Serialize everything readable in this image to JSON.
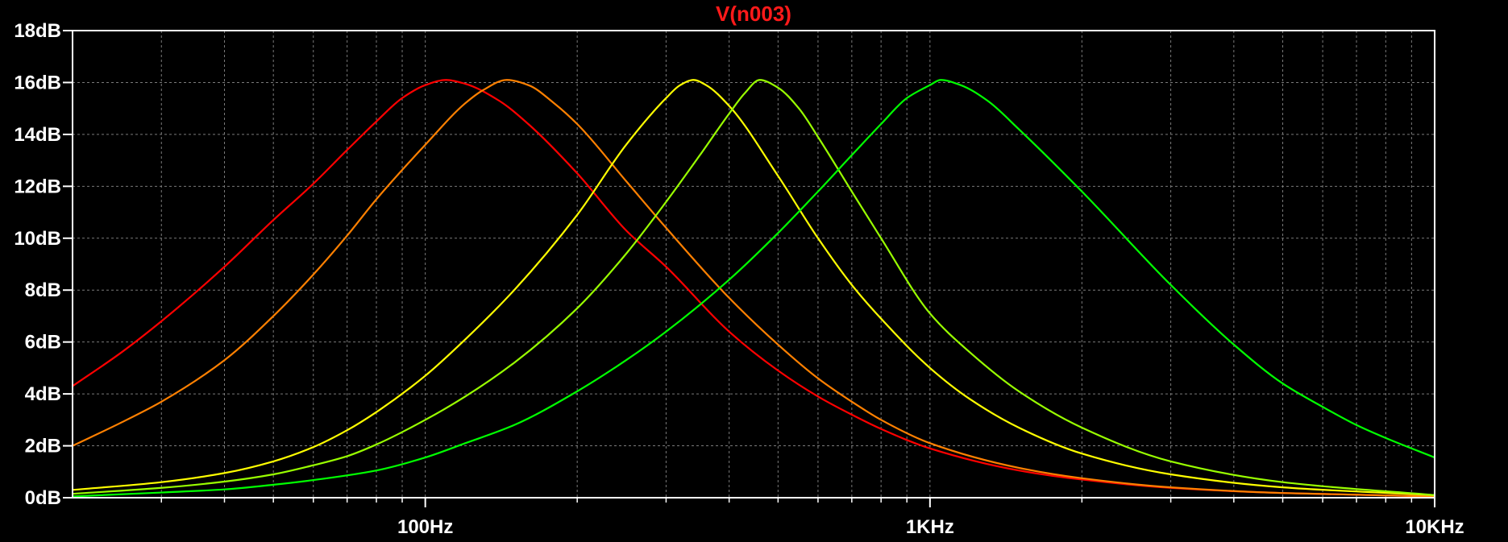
{
  "chart_data": {
    "type": "line",
    "title": "V(n003)",
    "title_color": "#ff1a1a",
    "background": "#000000",
    "frame_color": "#ffffff",
    "grid": true,
    "grid_color": "#7a7a7a",
    "x_scale": "log",
    "xlim": [
      20,
      10000
    ],
    "ylim": [
      0,
      18
    ],
    "x_ticks": [
      {
        "value": 100,
        "label": "100Hz"
      },
      {
        "value": 1000,
        "label": "1KHz"
      },
      {
        "value": 10000,
        "label": "10KHz"
      }
    ],
    "y_ticks": [
      {
        "value": 0,
        "label": "0dB"
      },
      {
        "value": 2,
        "label": "2dB"
      },
      {
        "value": 4,
        "label": "4dB"
      },
      {
        "value": 6,
        "label": "6dB"
      },
      {
        "value": 8,
        "label": "8dB"
      },
      {
        "value": 10,
        "label": "10dB"
      },
      {
        "value": 12,
        "label": "12dB"
      },
      {
        "value": 14,
        "label": "14dB"
      },
      {
        "value": 16,
        "label": "16dB"
      },
      {
        "value": 18,
        "label": "18dB"
      }
    ],
    "series": [
      {
        "color": "#ff0000",
        "points": [
          [
            20,
            4.3
          ],
          [
            25,
            5.6
          ],
          [
            30,
            6.8
          ],
          [
            40,
            8.9
          ],
          [
            50,
            10.7
          ],
          [
            60,
            12.1
          ],
          [
            70,
            13.4
          ],
          [
            80,
            14.5
          ],
          [
            90,
            15.4
          ],
          [
            100,
            15.9
          ],
          [
            110,
            16.1
          ],
          [
            120,
            15.95
          ],
          [
            140,
            15.3
          ],
          [
            160,
            14.4
          ],
          [
            200,
            12.5
          ],
          [
            250,
            10.3
          ],
          [
            300,
            8.9
          ],
          [
            400,
            6.4
          ],
          [
            500,
            4.9
          ],
          [
            600,
            3.9
          ],
          [
            700,
            3.2
          ],
          [
            800,
            2.65
          ],
          [
            1000,
            1.9
          ],
          [
            1500,
            1.05
          ],
          [
            2000,
            0.7
          ],
          [
            3000,
            0.38
          ],
          [
            5000,
            0.18
          ],
          [
            10000,
            0.05
          ]
        ]
      },
      {
        "color": "#ff8000",
        "points": [
          [
            20,
            2.0
          ],
          [
            25,
            2.9
          ],
          [
            30,
            3.7
          ],
          [
            40,
            5.3
          ],
          [
            50,
            7.0
          ],
          [
            60,
            8.6
          ],
          [
            70,
            10.1
          ],
          [
            80,
            11.5
          ],
          [
            100,
            13.6
          ],
          [
            120,
            15.2
          ],
          [
            130,
            15.7
          ],
          [
            145,
            16.1
          ],
          [
            160,
            15.9
          ],
          [
            180,
            15.2
          ],
          [
            200,
            14.4
          ],
          [
            250,
            12.2
          ],
          [
            300,
            10.4
          ],
          [
            400,
            7.7
          ],
          [
            500,
            5.9
          ],
          [
            600,
            4.6
          ],
          [
            700,
            3.7
          ],
          [
            800,
            3.0
          ],
          [
            1000,
            2.1
          ],
          [
            1500,
            1.15
          ],
          [
            2000,
            0.75
          ],
          [
            3000,
            0.4
          ],
          [
            5000,
            0.18
          ],
          [
            10000,
            0.05
          ]
        ]
      },
      {
        "color": "#ffff00",
        "points": [
          [
            20,
            0.3
          ],
          [
            30,
            0.6
          ],
          [
            40,
            0.95
          ],
          [
            50,
            1.4
          ],
          [
            60,
            1.95
          ],
          [
            70,
            2.6
          ],
          [
            80,
            3.3
          ],
          [
            100,
            4.7
          ],
          [
            120,
            6.1
          ],
          [
            150,
            8.0
          ],
          [
            200,
            10.9
          ],
          [
            250,
            13.6
          ],
          [
            300,
            15.4
          ],
          [
            320,
            15.9
          ],
          [
            340,
            16.1
          ],
          [
            360,
            15.9
          ],
          [
            400,
            15.1
          ],
          [
            500,
            12.4
          ],
          [
            600,
            10.0
          ],
          [
            700,
            8.2
          ],
          [
            800,
            6.9
          ],
          [
            1000,
            5.0
          ],
          [
            1200,
            3.8
          ],
          [
            1500,
            2.7
          ],
          [
            2000,
            1.7
          ],
          [
            3000,
            0.9
          ],
          [
            5000,
            0.4
          ],
          [
            10000,
            0.1
          ]
        ]
      },
      {
        "color": "#99ff00",
        "points": [
          [
            20,
            0.15
          ],
          [
            30,
            0.38
          ],
          [
            40,
            0.62
          ],
          [
            50,
            0.9
          ],
          [
            60,
            1.25
          ],
          [
            70,
            1.6
          ],
          [
            80,
            2.05
          ],
          [
            100,
            3.0
          ],
          [
            120,
            3.9
          ],
          [
            150,
            5.2
          ],
          [
            200,
            7.3
          ],
          [
            250,
            9.4
          ],
          [
            300,
            11.4
          ],
          [
            350,
            13.2
          ],
          [
            400,
            14.8
          ],
          [
            430,
            15.6
          ],
          [
            460,
            16.1
          ],
          [
            500,
            15.8
          ],
          [
            550,
            15.0
          ],
          [
            600,
            13.9
          ],
          [
            700,
            11.8
          ],
          [
            800,
            10.0
          ],
          [
            1000,
            7.1
          ],
          [
            1200,
            5.6
          ],
          [
            1500,
            4.1
          ],
          [
            2000,
            2.7
          ],
          [
            3000,
            1.4
          ],
          [
            5000,
            0.6
          ],
          [
            10000,
            0.1
          ]
        ]
      },
      {
        "color": "#00ff00",
        "points": [
          [
            20,
            0.05
          ],
          [
            30,
            0.2
          ],
          [
            40,
            0.32
          ],
          [
            50,
            0.5
          ],
          [
            60,
            0.68
          ],
          [
            80,
            1.05
          ],
          [
            100,
            1.55
          ],
          [
            120,
            2.1
          ],
          [
            150,
            2.8
          ],
          [
            200,
            4.1
          ],
          [
            250,
            5.3
          ],
          [
            300,
            6.4
          ],
          [
            400,
            8.4
          ],
          [
            500,
            10.2
          ],
          [
            600,
            11.8
          ],
          [
            700,
            13.2
          ],
          [
            800,
            14.4
          ],
          [
            900,
            15.4
          ],
          [
            1000,
            15.9
          ],
          [
            1050,
            16.1
          ],
          [
            1150,
            15.9
          ],
          [
            1300,
            15.3
          ],
          [
            1500,
            14.2
          ],
          [
            2000,
            11.8
          ],
          [
            3000,
            8.2
          ],
          [
            4000,
            5.9
          ],
          [
            5000,
            4.4
          ],
          [
            6000,
            3.5
          ],
          [
            7000,
            2.8
          ],
          [
            8000,
            2.3
          ],
          [
            10000,
            1.55
          ]
        ]
      }
    ]
  }
}
